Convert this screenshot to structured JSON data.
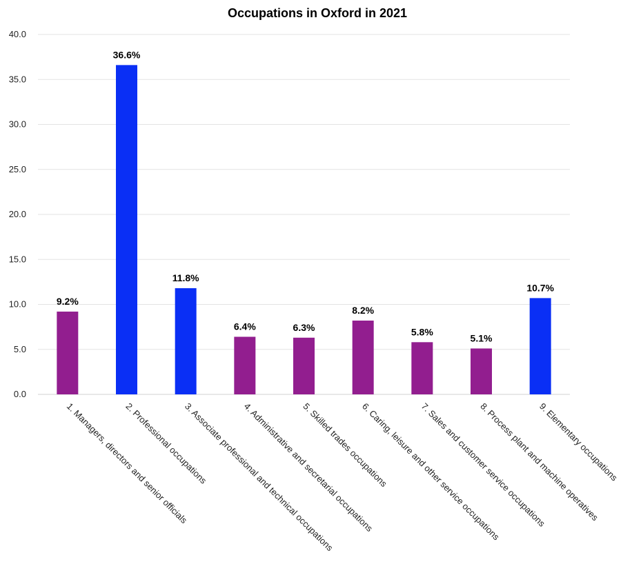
{
  "chart_data": {
    "type": "bar",
    "title": "Occupations in Oxford in 2021",
    "categories": [
      "1. Managers, directors and senior officials",
      "2. Professional occupations",
      "3. Associate professional and technical occupations",
      "4. Administrative and secretarial occupations",
      "5. Skilled trades occupations",
      "6. Caring, leisure and other service occupations",
      "7. Sales and customer service occupations",
      "8. Process plant and machine operatives",
      "9. Elementary occupations"
    ],
    "values": [
      9.2,
      36.6,
      11.8,
      6.4,
      6.3,
      8.2,
      5.8,
      5.1,
      10.7
    ],
    "data_labels": [
      "9.2%",
      "36.6%",
      "11.8%",
      "6.4%",
      "6.3%",
      "8.2%",
      "5.8%",
      "5.1%",
      "10.7%"
    ],
    "bar_colors": [
      "#921e8f",
      "#0a2ff5",
      "#0a2ff5",
      "#921e8f",
      "#921e8f",
      "#921e8f",
      "#921e8f",
      "#921e8f",
      "#0a2ff5"
    ],
    "ylim": [
      0,
      40
    ],
    "yticks": [
      "0.0",
      "5.0",
      "10.0",
      "15.0",
      "20.0",
      "25.0",
      "30.0",
      "35.0",
      "40.0"
    ],
    "xlabel": "",
    "ylabel": "",
    "grid": true,
    "legend": "none"
  }
}
